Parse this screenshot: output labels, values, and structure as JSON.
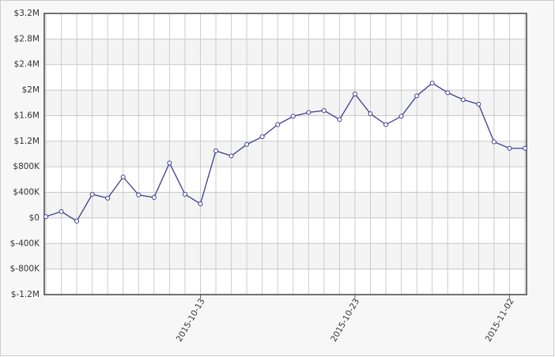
{
  "chart_data": {
    "type": "line",
    "categories": [
      null,
      null,
      null,
      null,
      null,
      null,
      null,
      null,
      null,
      null,
      "2015-10-13",
      null,
      null,
      null,
      null,
      null,
      null,
      null,
      null,
      null,
      "2015-10-23",
      null,
      null,
      null,
      null,
      null,
      null,
      null,
      null,
      null,
      "2015-11-02",
      null
    ],
    "series": [
      {
        "color": "#3d3d8f",
        "values": [
          20000,
          100000,
          -50000,
          370000,
          310000,
          640000,
          360000,
          320000,
          860000,
          370000,
          220000,
          1050000,
          970000,
          1150000,
          1270000,
          1460000,
          1590000,
          1650000,
          1680000,
          1540000,
          1940000,
          1630000,
          1460000,
          1590000,
          1910000,
          2110000,
          1960000,
          1850000,
          1780000,
          1190000,
          1090000,
          1090000
        ]
      }
    ],
    "ylim": [
      -1200000,
      3200000
    ],
    "yticks": [
      {
        "value": -1200000,
        "label": "$-1.2M"
      },
      {
        "value": -800000,
        "label": "$-800K"
      },
      {
        "value": -400000,
        "label": "$-400K"
      },
      {
        "value": 0,
        "label": "$0"
      },
      {
        "value": 400000,
        "label": "$400K"
      },
      {
        "value": 800000,
        "label": "$800K"
      },
      {
        "value": 1200000,
        "label": "$1.2M"
      },
      {
        "value": 1600000,
        "label": "$1.6M"
      },
      {
        "value": 2000000,
        "label": "$2M"
      },
      {
        "value": 2400000,
        "label": "$2.4M"
      },
      {
        "value": 2800000,
        "label": "$2.8M"
      },
      {
        "value": 3200000,
        "label": "$3.2M"
      }
    ],
    "grid": true
  }
}
